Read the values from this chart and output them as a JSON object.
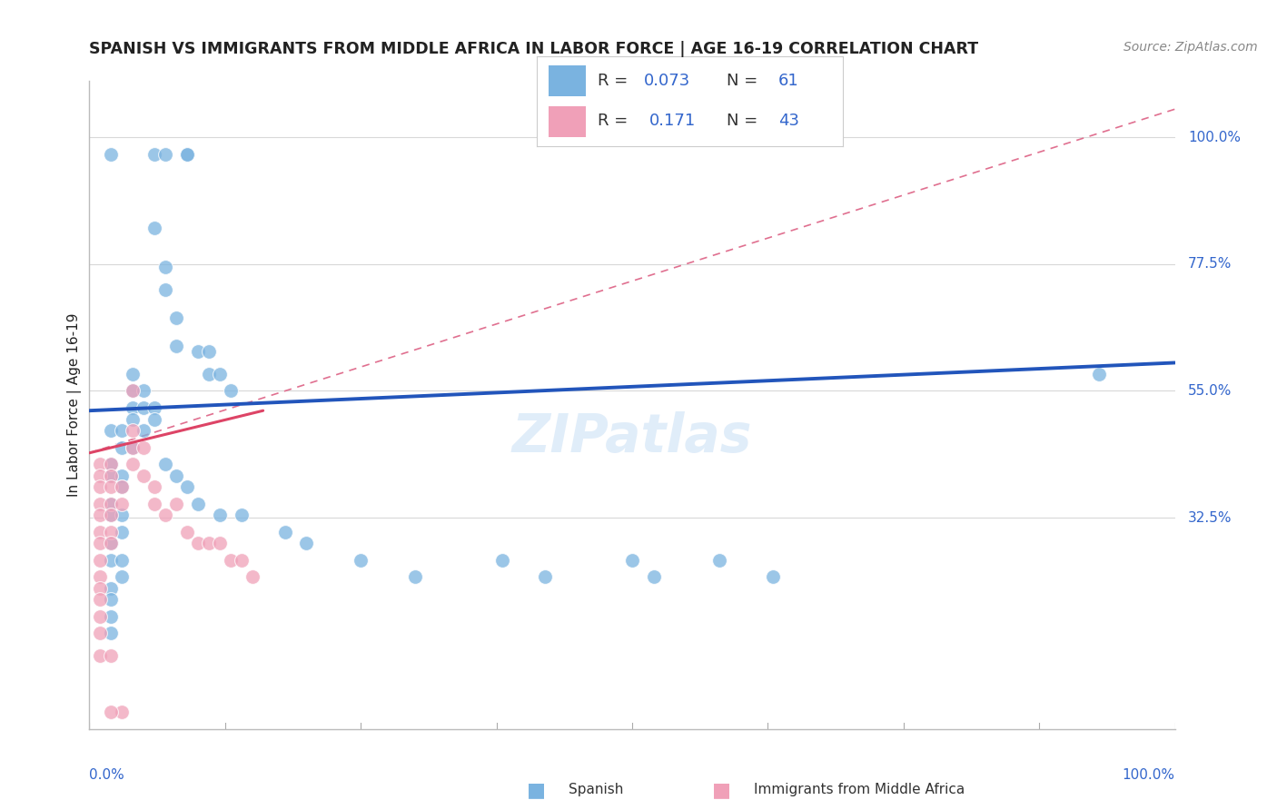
{
  "title": "SPANISH VS IMMIGRANTS FROM MIDDLE AFRICA IN LABOR FORCE | AGE 16-19 CORRELATION CHART",
  "source_text": "Source: ZipAtlas.com",
  "ylabel": "In Labor Force | Age 16-19",
  "xlim": [
    0.0,
    1.0
  ],
  "ylim": [
    -0.05,
    1.1
  ],
  "ytick_labels": [
    "100.0%",
    "77.5%",
    "55.0%",
    "32.5%"
  ],
  "ytick_values": [
    1.0,
    0.775,
    0.55,
    0.325
  ],
  "ytick_right_labels": [
    "100.0%",
    "77.5%",
    "55.0%",
    "32.5%"
  ],
  "blue_scatter": [
    [
      0.02,
      0.97
    ],
    [
      0.06,
      0.97
    ],
    [
      0.07,
      0.97
    ],
    [
      0.09,
      0.97
    ],
    [
      0.09,
      0.97
    ],
    [
      0.06,
      0.84
    ],
    [
      0.07,
      0.77
    ],
    [
      0.07,
      0.73
    ],
    [
      0.08,
      0.68
    ],
    [
      0.08,
      0.63
    ],
    [
      0.1,
      0.62
    ],
    [
      0.11,
      0.62
    ],
    [
      0.11,
      0.58
    ],
    [
      0.12,
      0.58
    ],
    [
      0.13,
      0.55
    ],
    [
      0.04,
      0.55
    ],
    [
      0.04,
      0.52
    ],
    [
      0.04,
      0.5
    ],
    [
      0.04,
      0.58
    ],
    [
      0.05,
      0.55
    ],
    [
      0.05,
      0.52
    ],
    [
      0.06,
      0.52
    ],
    [
      0.06,
      0.5
    ],
    [
      0.05,
      0.48
    ],
    [
      0.02,
      0.48
    ],
    [
      0.03,
      0.48
    ],
    [
      0.03,
      0.45
    ],
    [
      0.04,
      0.45
    ],
    [
      0.02,
      0.42
    ],
    [
      0.02,
      0.4
    ],
    [
      0.03,
      0.4
    ],
    [
      0.03,
      0.38
    ],
    [
      0.02,
      0.35
    ],
    [
      0.02,
      0.33
    ],
    [
      0.03,
      0.33
    ],
    [
      0.03,
      0.3
    ],
    [
      0.02,
      0.28
    ],
    [
      0.02,
      0.25
    ],
    [
      0.03,
      0.25
    ],
    [
      0.03,
      0.22
    ],
    [
      0.02,
      0.2
    ],
    [
      0.02,
      0.18
    ],
    [
      0.02,
      0.15
    ],
    [
      0.02,
      0.12
    ],
    [
      0.07,
      0.42
    ],
    [
      0.08,
      0.4
    ],
    [
      0.09,
      0.38
    ],
    [
      0.1,
      0.35
    ],
    [
      0.12,
      0.33
    ],
    [
      0.14,
      0.33
    ],
    [
      0.18,
      0.3
    ],
    [
      0.2,
      0.28
    ],
    [
      0.25,
      0.25
    ],
    [
      0.3,
      0.22
    ],
    [
      0.38,
      0.25
    ],
    [
      0.42,
      0.22
    ],
    [
      0.5,
      0.25
    ],
    [
      0.52,
      0.22
    ],
    [
      0.58,
      0.25
    ],
    [
      0.63,
      0.22
    ],
    [
      0.93,
      0.58
    ]
  ],
  "pink_scatter": [
    [
      0.01,
      0.42
    ],
    [
      0.01,
      0.4
    ],
    [
      0.01,
      0.38
    ],
    [
      0.01,
      0.35
    ],
    [
      0.01,
      0.33
    ],
    [
      0.01,
      0.3
    ],
    [
      0.01,
      0.28
    ],
    [
      0.01,
      0.25
    ],
    [
      0.01,
      0.22
    ],
    [
      0.01,
      0.2
    ],
    [
      0.01,
      0.18
    ],
    [
      0.01,
      0.15
    ],
    [
      0.01,
      0.12
    ],
    [
      0.01,
      0.08
    ],
    [
      0.02,
      0.42
    ],
    [
      0.02,
      0.4
    ],
    [
      0.02,
      0.38
    ],
    [
      0.02,
      0.35
    ],
    [
      0.02,
      0.33
    ],
    [
      0.02,
      0.3
    ],
    [
      0.02,
      0.28
    ],
    [
      0.02,
      0.08
    ],
    [
      0.03,
      0.38
    ],
    [
      0.03,
      0.35
    ],
    [
      0.04,
      0.55
    ],
    [
      0.04,
      0.48
    ],
    [
      0.04,
      0.45
    ],
    [
      0.04,
      0.42
    ],
    [
      0.05,
      0.45
    ],
    [
      0.05,
      0.4
    ],
    [
      0.06,
      0.38
    ],
    [
      0.06,
      0.35
    ],
    [
      0.07,
      0.33
    ],
    [
      0.08,
      0.35
    ],
    [
      0.09,
      0.3
    ],
    [
      0.1,
      0.28
    ],
    [
      0.11,
      0.28
    ],
    [
      0.12,
      0.28
    ],
    [
      0.13,
      0.25
    ],
    [
      0.14,
      0.25
    ],
    [
      0.15,
      0.22
    ],
    [
      0.03,
      -0.02
    ],
    [
      0.02,
      -0.02
    ]
  ],
  "blue_line": {
    "x0": 0.0,
    "x1": 1.0,
    "y0": 0.515,
    "y1": 0.6
  },
  "pink_line": {
    "x0": 0.0,
    "x1": 0.16,
    "y0": 0.44,
    "y1": 0.515
  },
  "pink_dash_line": {
    "x0": 0.0,
    "x1": 1.0,
    "y0": 0.44,
    "y1": 1.05
  },
  "blue_color": "#7ab3e0",
  "pink_color": "#f0a0b8",
  "blue_line_color": "#2255bb",
  "pink_line_color": "#dd4466",
  "pink_dash_color": "#e07090",
  "grid_color": "#d8d8d8",
  "watermark": "ZIPatlas",
  "watermark_color": "#c8dff5",
  "background_color": "#ffffff",
  "title_color": "#222222",
  "source_color": "#888888",
  "axis_color": "#3366cc",
  "legend_R_color": "#3366cc",
  "legend_N_color": "#3366cc"
}
